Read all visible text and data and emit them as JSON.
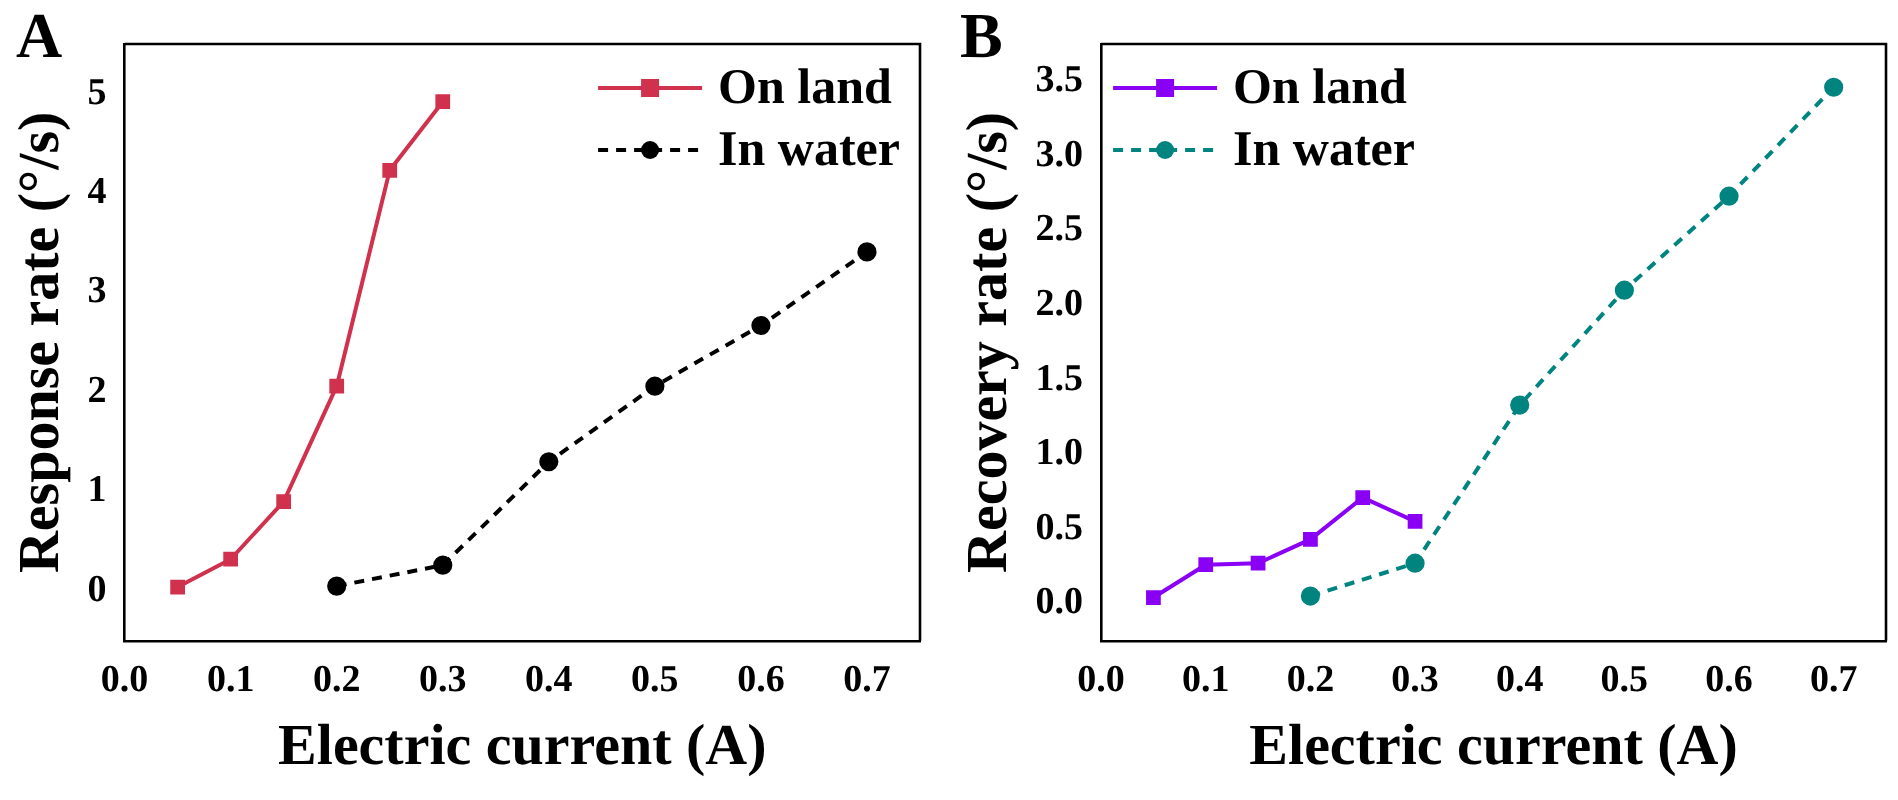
{
  "chart_data": [
    {
      "type": "line",
      "title": "A",
      "xlabel": "Electric current (A)",
      "ylabel": "Response rate (°/s)",
      "xlim": [
        0,
        0.75
      ],
      "ylim": [
        -0.5,
        5.5
      ],
      "xticks": [
        {
          "value": 0,
          "label": "0.0"
        },
        0.1,
        0.2,
        0.3,
        0.4,
        0.5,
        0.6,
        0.7
      ],
      "yticks": [
        0,
        1,
        2,
        3,
        4,
        5
      ],
      "grid": false,
      "legend": "top right",
      "series": [
        {
          "name": "On land",
          "color": "#d0314c",
          "marker": "square",
          "line_style": "solid",
          "x": [
            0.05,
            0.1,
            0.15,
            0.2,
            0.25,
            0.3
          ],
          "values": [
            0.04,
            0.32,
            0.9,
            2.06,
            4.23,
            4.92
          ]
        },
        {
          "name": "In water",
          "color": "#000000",
          "marker": "circle",
          "line_style": "dashed",
          "x": [
            0.2,
            0.3,
            0.4,
            0.5,
            0.6,
            0.7
          ],
          "values": [
            0.05,
            0.26,
            1.3,
            2.06,
            2.67,
            3.41
          ]
        }
      ]
    },
    {
      "type": "line",
      "title": "B",
      "xlabel": "Electric current (A)",
      "ylabel": "Recovery rate (°/s)",
      "xlim": [
        0,
        0.75
      ],
      "ylim": [
        -0.25,
        3.75
      ],
      "xticks": [
        {
          "value": 0,
          "label": "0.0"
        },
        0.1,
        0.2,
        0.3,
        0.4,
        0.5,
        0.6,
        0.7
      ],
      "yticks": [
        {
          "value": 0,
          "label": "0.0"
        },
        0.5,
        {
          "value": 1,
          "label": "1.0"
        },
        1.5,
        {
          "value": 2,
          "label": "2.0"
        },
        2.5,
        {
          "value": 3,
          "label": "3.0"
        },
        3.5
      ],
      "grid": false,
      "legend": "top left",
      "series": [
        {
          "name": "On land",
          "color": "#8a00f5",
          "marker": "square",
          "line_style": "solid",
          "x": [
            0.05,
            0.1,
            0.15,
            0.2,
            0.25,
            0.3
          ],
          "values": [
            0.04,
            0.26,
            0.27,
            0.43,
            0.71,
            0.55
          ]
        },
        {
          "name": "In water",
          "color": "#00847f",
          "marker": "circle",
          "line_style": "dashed",
          "x": [
            0.2,
            0.3,
            0.4,
            0.5,
            0.6,
            0.7
          ],
          "values": [
            0.05,
            0.27,
            1.33,
            2.1,
            2.73,
            3.46
          ]
        }
      ]
    }
  ]
}
